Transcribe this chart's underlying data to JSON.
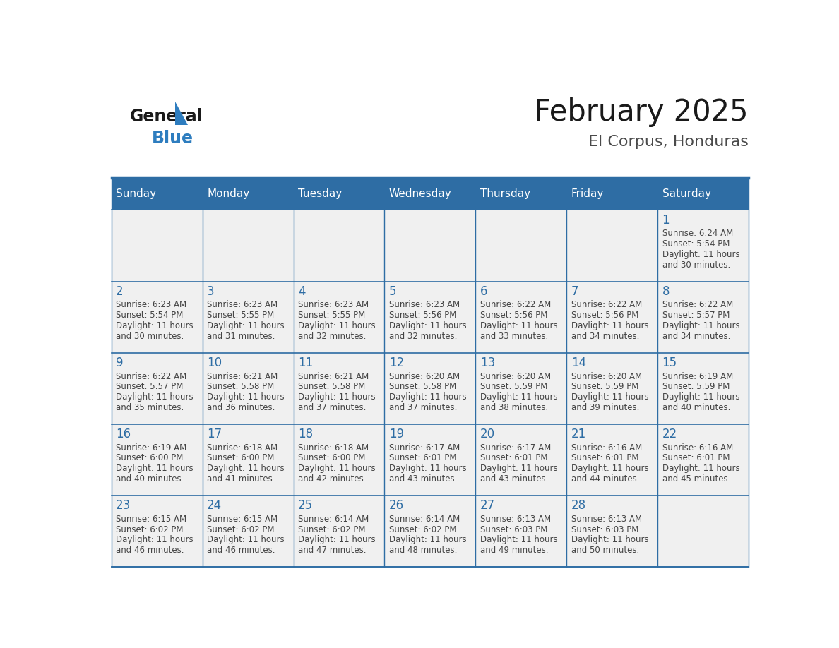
{
  "title": "February 2025",
  "subtitle": "El Corpus, Honduras",
  "days_of_week": [
    "Sunday",
    "Monday",
    "Tuesday",
    "Wednesday",
    "Thursday",
    "Friday",
    "Saturday"
  ],
  "header_bg": "#2E6DA4",
  "header_text": "#FFFFFF",
  "cell_bg": "#F0F0F0",
  "border_color": "#2E6DA4",
  "day_number_color": "#2E6DA4",
  "text_color": "#444444",
  "logo_general_color": "#1a1a1a",
  "logo_blue_color": "#2E7DBF",
  "calendar_data": [
    [
      null,
      null,
      null,
      null,
      null,
      null,
      {
        "day": 1,
        "sunrise": "6:24 AM",
        "sunset": "5:54 PM",
        "daylight": "11 hours\nand 30 minutes."
      }
    ],
    [
      {
        "day": 2,
        "sunrise": "6:23 AM",
        "sunset": "5:54 PM",
        "daylight": "11 hours\nand 30 minutes."
      },
      {
        "day": 3,
        "sunrise": "6:23 AM",
        "sunset": "5:55 PM",
        "daylight": "11 hours\nand 31 minutes."
      },
      {
        "day": 4,
        "sunrise": "6:23 AM",
        "sunset": "5:55 PM",
        "daylight": "11 hours\nand 32 minutes."
      },
      {
        "day": 5,
        "sunrise": "6:23 AM",
        "sunset": "5:56 PM",
        "daylight": "11 hours\nand 32 minutes."
      },
      {
        "day": 6,
        "sunrise": "6:22 AM",
        "sunset": "5:56 PM",
        "daylight": "11 hours\nand 33 minutes."
      },
      {
        "day": 7,
        "sunrise": "6:22 AM",
        "sunset": "5:56 PM",
        "daylight": "11 hours\nand 34 minutes."
      },
      {
        "day": 8,
        "sunrise": "6:22 AM",
        "sunset": "5:57 PM",
        "daylight": "11 hours\nand 34 minutes."
      }
    ],
    [
      {
        "day": 9,
        "sunrise": "6:22 AM",
        "sunset": "5:57 PM",
        "daylight": "11 hours\nand 35 minutes."
      },
      {
        "day": 10,
        "sunrise": "6:21 AM",
        "sunset": "5:58 PM",
        "daylight": "11 hours\nand 36 minutes."
      },
      {
        "day": 11,
        "sunrise": "6:21 AM",
        "sunset": "5:58 PM",
        "daylight": "11 hours\nand 37 minutes."
      },
      {
        "day": 12,
        "sunrise": "6:20 AM",
        "sunset": "5:58 PM",
        "daylight": "11 hours\nand 37 minutes."
      },
      {
        "day": 13,
        "sunrise": "6:20 AM",
        "sunset": "5:59 PM",
        "daylight": "11 hours\nand 38 minutes."
      },
      {
        "day": 14,
        "sunrise": "6:20 AM",
        "sunset": "5:59 PM",
        "daylight": "11 hours\nand 39 minutes."
      },
      {
        "day": 15,
        "sunrise": "6:19 AM",
        "sunset": "5:59 PM",
        "daylight": "11 hours\nand 40 minutes."
      }
    ],
    [
      {
        "day": 16,
        "sunrise": "6:19 AM",
        "sunset": "6:00 PM",
        "daylight": "11 hours\nand 40 minutes."
      },
      {
        "day": 17,
        "sunrise": "6:18 AM",
        "sunset": "6:00 PM",
        "daylight": "11 hours\nand 41 minutes."
      },
      {
        "day": 18,
        "sunrise": "6:18 AM",
        "sunset": "6:00 PM",
        "daylight": "11 hours\nand 42 minutes."
      },
      {
        "day": 19,
        "sunrise": "6:17 AM",
        "sunset": "6:01 PM",
        "daylight": "11 hours\nand 43 minutes."
      },
      {
        "day": 20,
        "sunrise": "6:17 AM",
        "sunset": "6:01 PM",
        "daylight": "11 hours\nand 43 minutes."
      },
      {
        "day": 21,
        "sunrise": "6:16 AM",
        "sunset": "6:01 PM",
        "daylight": "11 hours\nand 44 minutes."
      },
      {
        "day": 22,
        "sunrise": "6:16 AM",
        "sunset": "6:01 PM",
        "daylight": "11 hours\nand 45 minutes."
      }
    ],
    [
      {
        "day": 23,
        "sunrise": "6:15 AM",
        "sunset": "6:02 PM",
        "daylight": "11 hours\nand 46 minutes."
      },
      {
        "day": 24,
        "sunrise": "6:15 AM",
        "sunset": "6:02 PM",
        "daylight": "11 hours\nand 46 minutes."
      },
      {
        "day": 25,
        "sunrise": "6:14 AM",
        "sunset": "6:02 PM",
        "daylight": "11 hours\nand 47 minutes."
      },
      {
        "day": 26,
        "sunrise": "6:14 AM",
        "sunset": "6:02 PM",
        "daylight": "11 hours\nand 48 minutes."
      },
      {
        "day": 27,
        "sunrise": "6:13 AM",
        "sunset": "6:03 PM",
        "daylight": "11 hours\nand 49 minutes."
      },
      {
        "day": 28,
        "sunrise": "6:13 AM",
        "sunset": "6:03 PM",
        "daylight": "11 hours\nand 50 minutes."
      },
      null
    ]
  ]
}
